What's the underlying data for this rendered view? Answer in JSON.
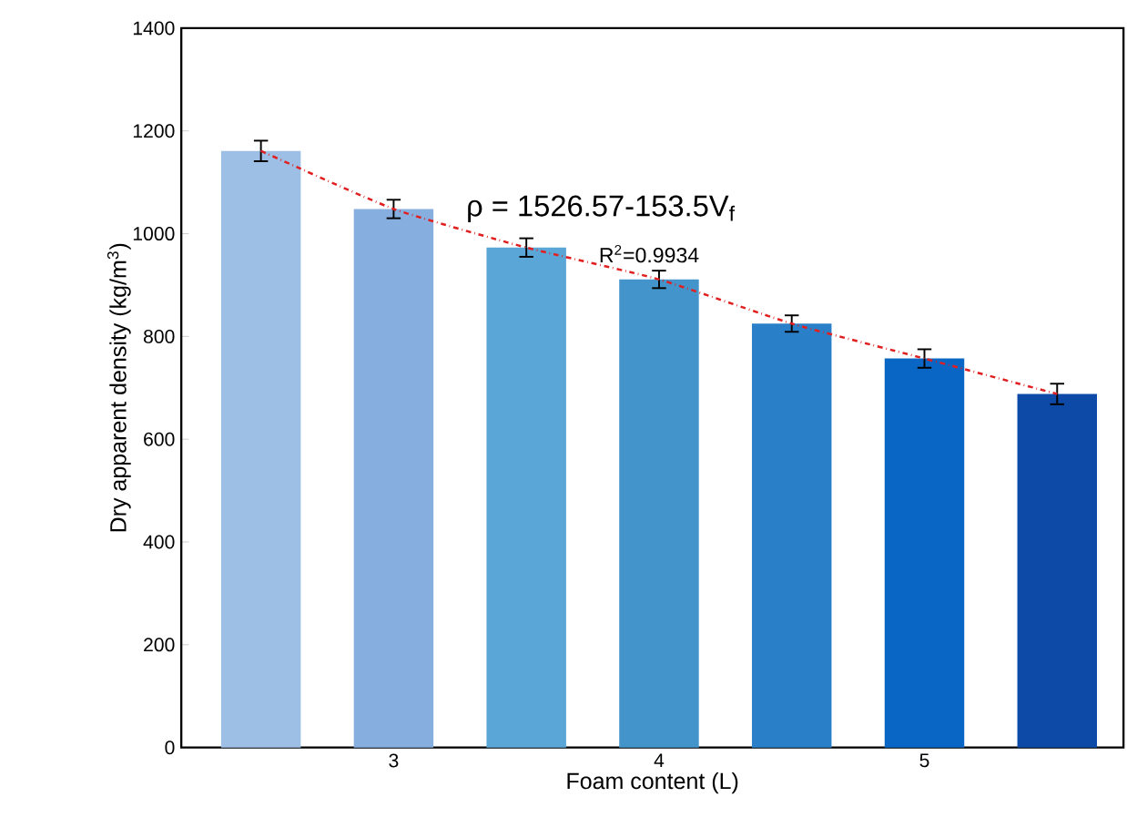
{
  "chart_data": {
    "type": "bar",
    "xlabel": "Foam content (L)",
    "ylabel": "Dry apparent density (kg/m$^{3}$)",
    "x": [
      2.5,
      3,
      3.5,
      4,
      4.5,
      5,
      5.5
    ],
    "xlim": [
      2.2,
      5.75
    ],
    "xticks": [
      3,
      4,
      5
    ],
    "ylim": [
      0,
      1400
    ],
    "yticks": [
      0,
      200,
      400,
      600,
      800,
      1000,
      1200,
      1400
    ],
    "series": [
      {
        "values": [
          1161,
          1048,
          973,
          911,
          825,
          757,
          688
        ],
        "errors": [
          20,
          18,
          18,
          17,
          16,
          18,
          20
        ],
        "colors": [
          "#9dbfe6",
          "#86aedf",
          "#5aa6d6",
          "#4394ca",
          "#2a80c8",
          "#0a66c4",
          "#0d4aa8"
        ]
      },
      {
        "type": "line",
        "x": [
          2.5,
          3,
          3.5,
          4,
          4.5,
          5,
          5.5
        ],
        "values": [
          1161,
          1048,
          973,
          911,
          825,
          757,
          688
        ],
        "color": "#e02020",
        "line_style": "dashdot",
        "marker": "none"
      }
    ],
    "annotations": [
      "ρ = 1526.57-153.5V$_{f}$",
      "R$^{2}$=0.9934"
    ]
  }
}
